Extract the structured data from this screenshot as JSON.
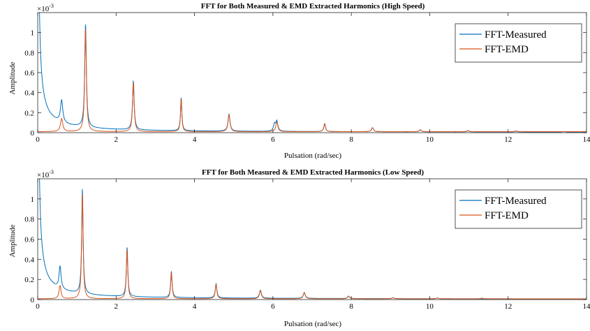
{
  "colors": {
    "measured": "#0072BD",
    "emd": "#D95319",
    "axis": "#262626"
  },
  "chart_data": [
    {
      "type": "line",
      "title": "FFT for Both Measured & EMD Extracted Harmonics (High Speed)",
      "xlabel": "Pulsation (rad/sec)",
      "ylabel": "Amplitude",
      "exponent_label": {
        "base": "×10",
        "power": "-3"
      },
      "xlim": [
        0,
        14
      ],
      "ylim": [
        0,
        1.2
      ],
      "xticks": [
        0,
        2,
        4,
        6,
        8,
        10,
        12,
        14
      ],
      "yticks": [
        0,
        0.2,
        0.4,
        0.6,
        0.8,
        1
      ],
      "legend_position": "top-right",
      "series": [
        {
          "name": "FFT-Measured",
          "baseline": {
            "kind": "decay",
            "a": 0.065,
            "b": 0.0,
            "c": 0.008,
            "d": 0.002
          },
          "peaks": [
            {
              "x": 0.61,
              "y": 0.22,
              "w": 0.035
            },
            {
              "x": 1.22,
              "y": 1.03,
              "w": 0.025
            },
            {
              "x": 2.44,
              "y": 0.49,
              "w": 0.025
            },
            {
              "x": 3.66,
              "y": 0.33,
              "w": 0.02
            },
            {
              "x": 4.88,
              "y": 0.17,
              "w": 0.03
            },
            {
              "x": 6.04,
              "y": 0.07,
              "w": 0.03
            },
            {
              "x": 6.1,
              "y": 0.1,
              "w": 0.03
            },
            {
              "x": 7.32,
              "y": 0.08,
              "w": 0.025
            },
            {
              "x": 8.54,
              "y": 0.04,
              "w": 0.03
            },
            {
              "x": 9.76,
              "y": 0.02,
              "w": 0.03
            },
            {
              "x": 10.98,
              "y": 0.012,
              "w": 0.03
            },
            {
              "x": 12.2,
              "y": 0.008,
              "w": 0.03
            },
            {
              "x": 13.42,
              "y": 0.005,
              "w": 0.03
            }
          ]
        },
        {
          "name": "FFT-EMD",
          "baseline": {
            "kind": "flat",
            "level": 0.01
          },
          "peaks": [
            {
              "x": 0.61,
              "y": 0.13,
              "w": 0.035
            },
            {
              "x": 1.22,
              "y": 1.03,
              "w": 0.025
            },
            {
              "x": 2.44,
              "y": 0.49,
              "w": 0.025
            },
            {
              "x": 3.66,
              "y": 0.33,
              "w": 0.02
            },
            {
              "x": 4.88,
              "y": 0.17,
              "w": 0.03
            },
            {
              "x": 6.1,
              "y": 0.1,
              "w": 0.03
            },
            {
              "x": 7.32,
              "y": 0.08,
              "w": 0.025
            },
            {
              "x": 8.54,
              "y": 0.04,
              "w": 0.03
            },
            {
              "x": 9.76,
              "y": 0.02,
              "w": 0.03
            },
            {
              "x": 10.98,
              "y": 0.012,
              "w": 0.03
            },
            {
              "x": 12.2,
              "y": 0.008,
              "w": 0.03
            }
          ]
        }
      ]
    },
    {
      "type": "line",
      "title": "FFT for Both Measured & EMD Extracted Harmonics (Low Speed)",
      "xlabel": "Pulsation (rad/sec)",
      "ylabel": "Amplitude",
      "exponent_label": {
        "base": "×10",
        "power": "-3"
      },
      "xlim": [
        0,
        14
      ],
      "ylim": [
        0,
        1.2
      ],
      "xticks": [
        0,
        2,
        4,
        6,
        8,
        10,
        12,
        14
      ],
      "yticks": [
        0,
        0.2,
        0.4,
        0.6,
        0.8,
        1
      ],
      "legend_position": "top-right",
      "series": [
        {
          "name": "FFT-Measured",
          "baseline": {
            "kind": "decay",
            "a": 0.065,
            "b": 0.0,
            "c": 0.008,
            "d": 0.002
          },
          "peaks": [
            {
              "x": 0.57,
              "y": 0.22,
              "w": 0.03
            },
            {
              "x": 1.14,
              "y": 1.04,
              "w": 0.022
            },
            {
              "x": 2.28,
              "y": 0.49,
              "w": 0.022
            },
            {
              "x": 3.41,
              "y": 0.26,
              "w": 0.022
            },
            {
              "x": 4.55,
              "y": 0.14,
              "w": 0.025
            },
            {
              "x": 5.68,
              "y": 0.08,
              "w": 0.03
            },
            {
              "x": 6.8,
              "y": 0.06,
              "w": 0.03
            },
            {
              "x": 7.93,
              "y": 0.025,
              "w": 0.03
            },
            {
              "x": 9.06,
              "y": 0.01,
              "w": 0.03
            },
            {
              "x": 10.2,
              "y": 0.008,
              "w": 0.03
            }
          ]
        },
        {
          "name": "FFT-EMD",
          "baseline": {
            "kind": "flat",
            "level": 0.008
          },
          "peaks": [
            {
              "x": 0.57,
              "y": 0.13,
              "w": 0.03
            },
            {
              "x": 1.14,
              "y": 1.04,
              "w": 0.022
            },
            {
              "x": 2.28,
              "y": 0.49,
              "w": 0.022
            },
            {
              "x": 3.41,
              "y": 0.26,
              "w": 0.022
            },
            {
              "x": 4.55,
              "y": 0.14,
              "w": 0.025
            },
            {
              "x": 5.68,
              "y": 0.08,
              "w": 0.03
            },
            {
              "x": 6.8,
              "y": 0.06,
              "w": 0.03
            },
            {
              "x": 7.93,
              "y": 0.025,
              "w": 0.03
            },
            {
              "x": 9.06,
              "y": 0.01,
              "w": 0.03
            },
            {
              "x": 10.2,
              "y": 0.008,
              "w": 0.03
            },
            {
              "x": 11.33,
              "y": 0.006,
              "w": 0.03
            }
          ]
        }
      ]
    }
  ]
}
